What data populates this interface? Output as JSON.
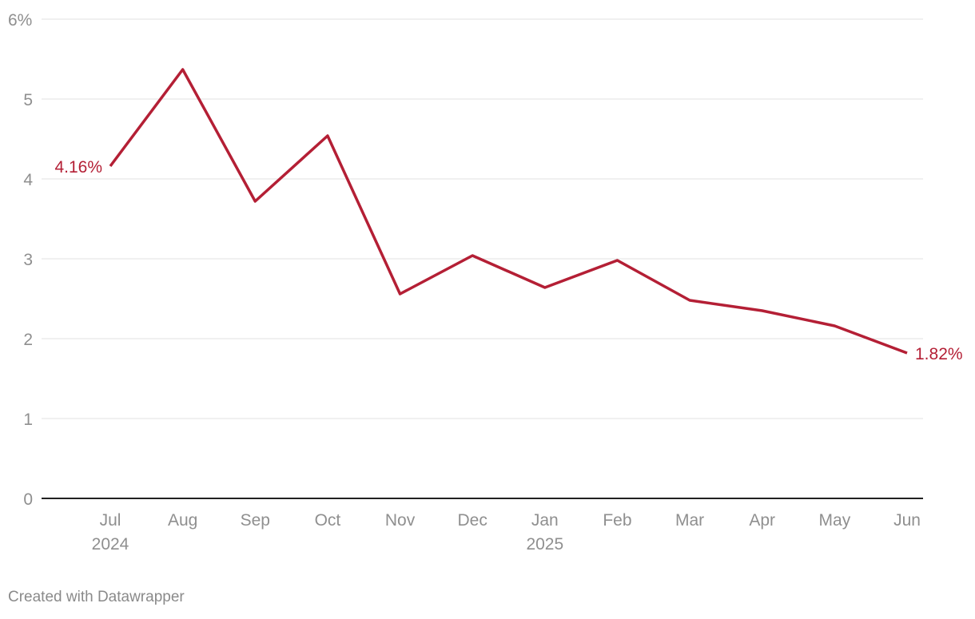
{
  "chart_data": {
    "type": "line",
    "categories": [
      "Jul 2024",
      "Aug",
      "Sep",
      "Oct",
      "Nov",
      "Dec",
      "Jan 2025",
      "Feb",
      "Mar",
      "Apr",
      "May",
      "Jun"
    ],
    "series": [
      {
        "color": "#b41f35",
        "values": [
          4.16,
          5.37,
          3.72,
          4.54,
          2.56,
          3.04,
          2.64,
          2.98,
          2.48,
          2.35,
          2.16,
          1.82
        ],
        "value_labels": [
          "4.16%",
          null,
          null,
          null,
          null,
          null,
          null,
          null,
          null,
          null,
          null,
          "1.82%"
        ]
      }
    ],
    "ylim": [
      0,
      6
    ],
    "yticks": [
      0,
      1,
      2,
      3,
      4,
      5,
      {
        "value": 6,
        "label": "6%"
      }
    ],
    "grid": true,
    "footer": "Created with Datawrapper"
  }
}
